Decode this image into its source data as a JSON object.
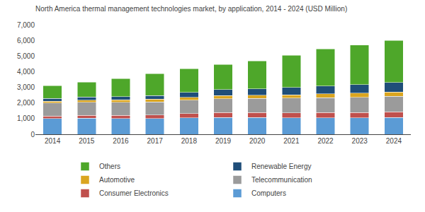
{
  "chart_data": {
    "type": "bar",
    "title": "North America thermal management technologies market, by application, 2014 - 2024 (USD Million)",
    "categories": [
      "2014",
      "2015",
      "2016",
      "2017",
      "2018",
      "2019",
      "2020",
      "2021",
      "2022",
      "2023",
      "2024"
    ],
    "series": [
      {
        "name": "Computers",
        "color": "#5B9BD5",
        "values": [
          1000,
          1020,
          1000,
          1000,
          1050,
          1080,
          1080,
          1050,
          1050,
          1050,
          1070
        ]
      },
      {
        "name": "Consumer Electronics",
        "color": "#C0504D",
        "values": [
          170,
          190,
          200,
          220,
          260,
          300,
          300,
          310,
          330,
          340,
          360
        ]
      },
      {
        "name": "Telecommunication",
        "color": "#9B9B9B",
        "values": [
          820,
          830,
          840,
          850,
          870,
          900,
          920,
          950,
          960,
          980,
          1000
        ]
      },
      {
        "name": "Automotive",
        "color": "#DAA520",
        "values": [
          130,
          150,
          160,
          170,
          190,
          200,
          200,
          200,
          250,
          260,
          270
        ]
      },
      {
        "name": "Renewable Energy",
        "color": "#1F4E79",
        "values": [
          170,
          190,
          210,
          240,
          300,
          380,
          400,
          480,
          500,
          540,
          600
        ]
      },
      {
        "name": "Others",
        "color": "#4EA72A",
        "values": [
          820,
          960,
          1140,
          1400,
          1530,
          1590,
          1780,
          2060,
          2360,
          2530,
          2700
        ]
      }
    ],
    "stacked": true,
    "ylim": [
      0,
      7000
    ],
    "yticks": [
      0,
      {
        "value": 1000,
        "label": "1,000"
      },
      {
        "value": 2000,
        "label": "2,000"
      },
      {
        "value": 3000,
        "label": "3,000"
      },
      {
        "value": 4000,
        "label": "4,000"
      },
      {
        "value": 5000,
        "label": "5,000"
      },
      {
        "value": 6000,
        "label": "6,000"
      },
      {
        "value": 7000,
        "label": "7,000"
      }
    ],
    "grid": false,
    "legend": "bottom"
  }
}
